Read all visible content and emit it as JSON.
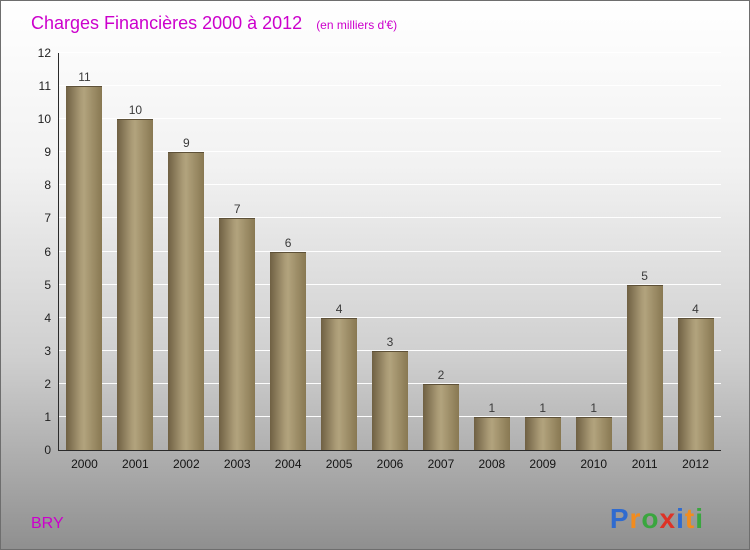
{
  "title": {
    "main": "Charges Financières 2000 à 2012",
    "subtitle": "(en milliers d'€)",
    "color": "#cc00cc"
  },
  "footer": {
    "company": "BRY",
    "company_color": "#cc00cc",
    "logo_letters": [
      {
        "char": "P",
        "color": "#2f6bd0"
      },
      {
        "char": "r",
        "color": "#f28c1e"
      },
      {
        "char": "o",
        "color": "#3aa63f"
      },
      {
        "char": "x",
        "color": "#dd3327"
      },
      {
        "char": "i",
        "color": "#2f6bd0"
      },
      {
        "char": "t",
        "color": "#f28c1e"
      },
      {
        "char": "i",
        "color": "#3aa63f"
      }
    ]
  },
  "chart_data": {
    "type": "bar",
    "title": "Charges Financières 2000 à 2012",
    "subtitle": "(en milliers d'€)",
    "categories": [
      "2000",
      "2001",
      "2002",
      "2003",
      "2004",
      "2005",
      "2006",
      "2007",
      "2008",
      "2009",
      "2010",
      "2011",
      "2012"
    ],
    "values": [
      11,
      10,
      9,
      7,
      6,
      4,
      3,
      2,
      1,
      1,
      1,
      5,
      4
    ],
    "xlabel": "",
    "ylabel": "",
    "ylim": [
      0,
      12
    ],
    "yticks": [
      0,
      1,
      2,
      3,
      4,
      5,
      6,
      7,
      8,
      9,
      10,
      11,
      12
    ],
    "grid": true,
    "legend": false,
    "bar_gradient": [
      "#6f6043",
      "#b2a37d",
      "#887852"
    ],
    "value_label_color": "#3a3a3a"
  }
}
